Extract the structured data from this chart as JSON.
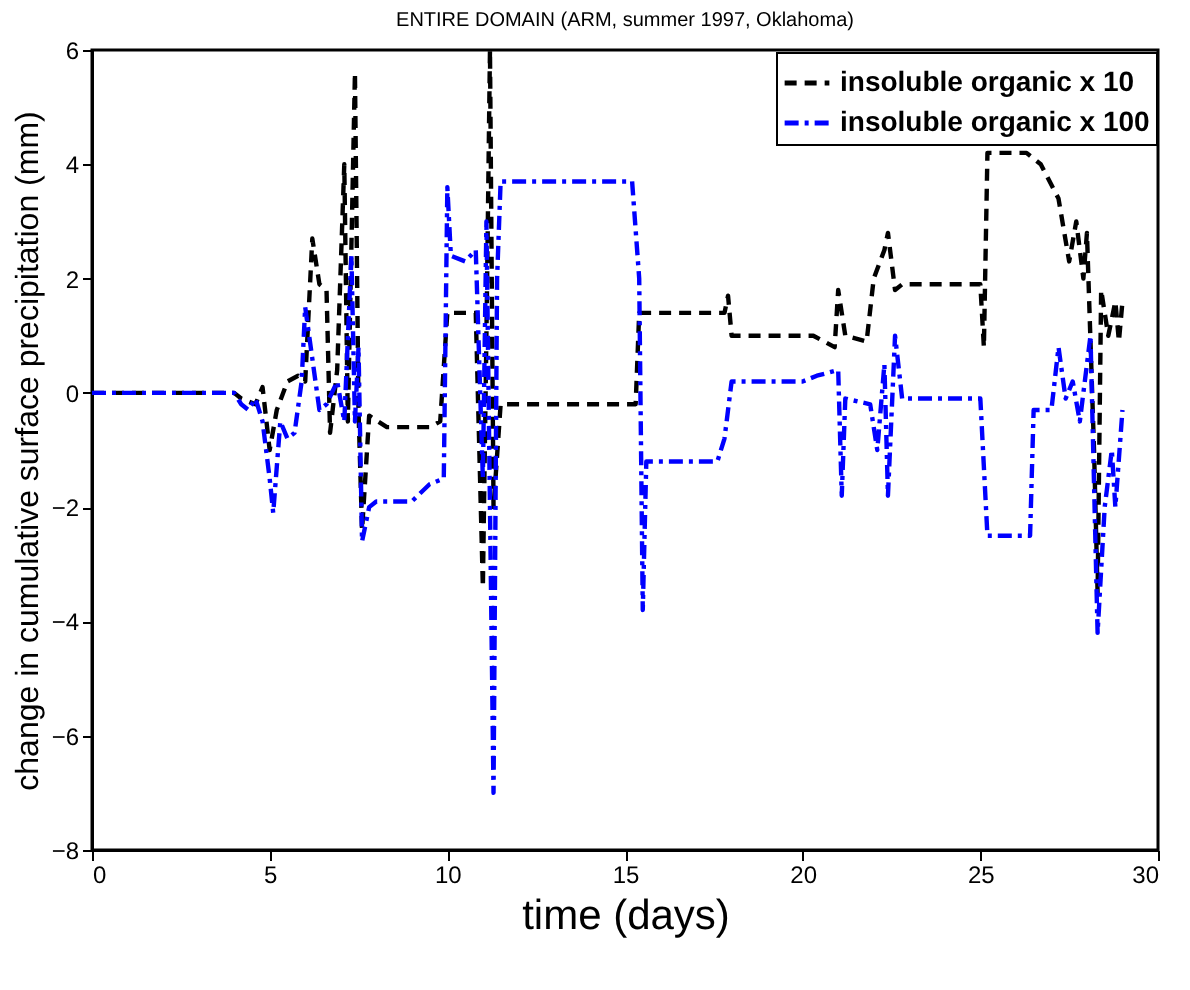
{
  "chart_data": {
    "type": "line",
    "title": "ENTIRE DOMAIN  (ARM, summer 1997, Oklahoma)",
    "xlabel": "time (days)",
    "ylabel": "change in cumulative surface precipitation (mm)",
    "xlim": [
      0,
      30
    ],
    "xticks": [
      0,
      5,
      10,
      15,
      20,
      25,
      30
    ],
    "ylim": [
      -8,
      6
    ],
    "yticks": [
      -8,
      -6,
      -4,
      -2,
      0,
      2,
      4,
      6
    ],
    "grid": false,
    "legend": "top right",
    "marker": "none",
    "series": [
      {
        "name": "insoluble organic x 10",
        "color": "#000000",
        "line_style": "dashed",
        "x": [
          0,
          4.0,
          4.2,
          4.6,
          4.8,
          5.0,
          5.2,
          5.5,
          5.8,
          6.0,
          6.2,
          6.4,
          6.6,
          6.7,
          6.9,
          7.1,
          7.2,
          7.4,
          7.5,
          7.6,
          7.8,
          8.3,
          9.5,
          9.8,
          10.0,
          10.2,
          10.8,
          11.0,
          11.1,
          11.2,
          11.3,
          11.5,
          15.3,
          15.4,
          17.8,
          17.9,
          18.0,
          20.3,
          20.6,
          20.9,
          21.0,
          21.2,
          21.8,
          22.0,
          22.3,
          22.4,
          22.6,
          22.8,
          25.0,
          25.1,
          25.2,
          26.3,
          26.7,
          27.2,
          27.5,
          27.7,
          27.9,
          28.0,
          28.2,
          28.3,
          28.4,
          28.6,
          28.8,
          28.9,
          29.0
        ],
        "values": [
          0,
          0,
          -0.1,
          -0.2,
          0.1,
          -1.0,
          -0.3,
          0.2,
          0.3,
          0.2,
          2.7,
          1.9,
          1.8,
          -0.7,
          0.4,
          4.0,
          -0.5,
          5.6,
          -0.3,
          -2.4,
          -0.4,
          -0.6,
          -0.6,
          -0.5,
          1.4,
          1.4,
          1.4,
          -3.4,
          1.0,
          6.0,
          -2.0,
          -0.2,
          -0.2,
          1.4,
          1.4,
          1.7,
          1.0,
          1.0,
          0.9,
          0.8,
          1.8,
          1.0,
          0.9,
          2.0,
          2.5,
          2.8,
          1.8,
          1.9,
          1.9,
          0.8,
          4.2,
          4.2,
          4.0,
          3.4,
          2.3,
          3.0,
          2.0,
          2.8,
          -1.0,
          -3.5,
          1.8,
          1.0,
          1.6,
          0.9,
          1.6
        ]
      },
      {
        "name": "insoluble organic x 100",
        "color": "#0000ff",
        "line_style": "dashdot",
        "x": [
          0,
          4.0,
          4.2,
          4.4,
          4.6,
          4.8,
          5.0,
          5.1,
          5.3,
          5.5,
          5.7,
          5.9,
          6.0,
          6.2,
          6.4,
          6.6,
          6.9,
          7.1,
          7.3,
          7.4,
          7.5,
          7.6,
          7.8,
          8.0,
          9.0,
          9.5,
          9.9,
          10.0,
          10.1,
          10.5,
          10.8,
          11.0,
          11.1,
          11.2,
          11.3,
          11.4,
          11.5,
          15.2,
          15.4,
          15.5,
          15.6,
          17.6,
          17.8,
          18.0,
          20.0,
          20.4,
          21.0,
          21.1,
          21.2,
          21.9,
          22.0,
          22.1,
          22.3,
          22.4,
          22.6,
          22.8,
          25.0,
          25.2,
          26.4,
          26.5,
          27.0,
          27.2,
          27.4,
          27.6,
          27.8,
          28.1,
          28.3,
          28.5,
          28.7,
          28.8,
          29.0
        ],
        "values": [
          0,
          0,
          -0.2,
          -0.3,
          -0.1,
          -0.5,
          -1.5,
          -2.1,
          -0.5,
          -0.8,
          -0.7,
          0.2,
          1.5,
          0.6,
          -0.3,
          -0.2,
          0.2,
          -0.5,
          2.4,
          -0.5,
          0.8,
          -2.6,
          -2.0,
          -1.9,
          -1.9,
          -1.6,
          -1.5,
          3.6,
          2.4,
          2.3,
          2.5,
          -1.5,
          3.0,
          -2.0,
          -7.0,
          2.0,
          3.7,
          3.7,
          2.0,
          -3.8,
          -1.2,
          -1.2,
          -0.8,
          0.2,
          0.2,
          0.3,
          0.4,
          -1.8,
          -0.1,
          -0.2,
          -0.6,
          -1.0,
          0.5,
          -1.8,
          1.0,
          -0.1,
          -0.1,
          -2.5,
          -2.5,
          -0.3,
          -0.3,
          0.8,
          -0.1,
          0.2,
          -0.5,
          1.0,
          -4.2,
          -2.0,
          -1.0,
          -2.0,
          -0.3
        ]
      }
    ]
  }
}
